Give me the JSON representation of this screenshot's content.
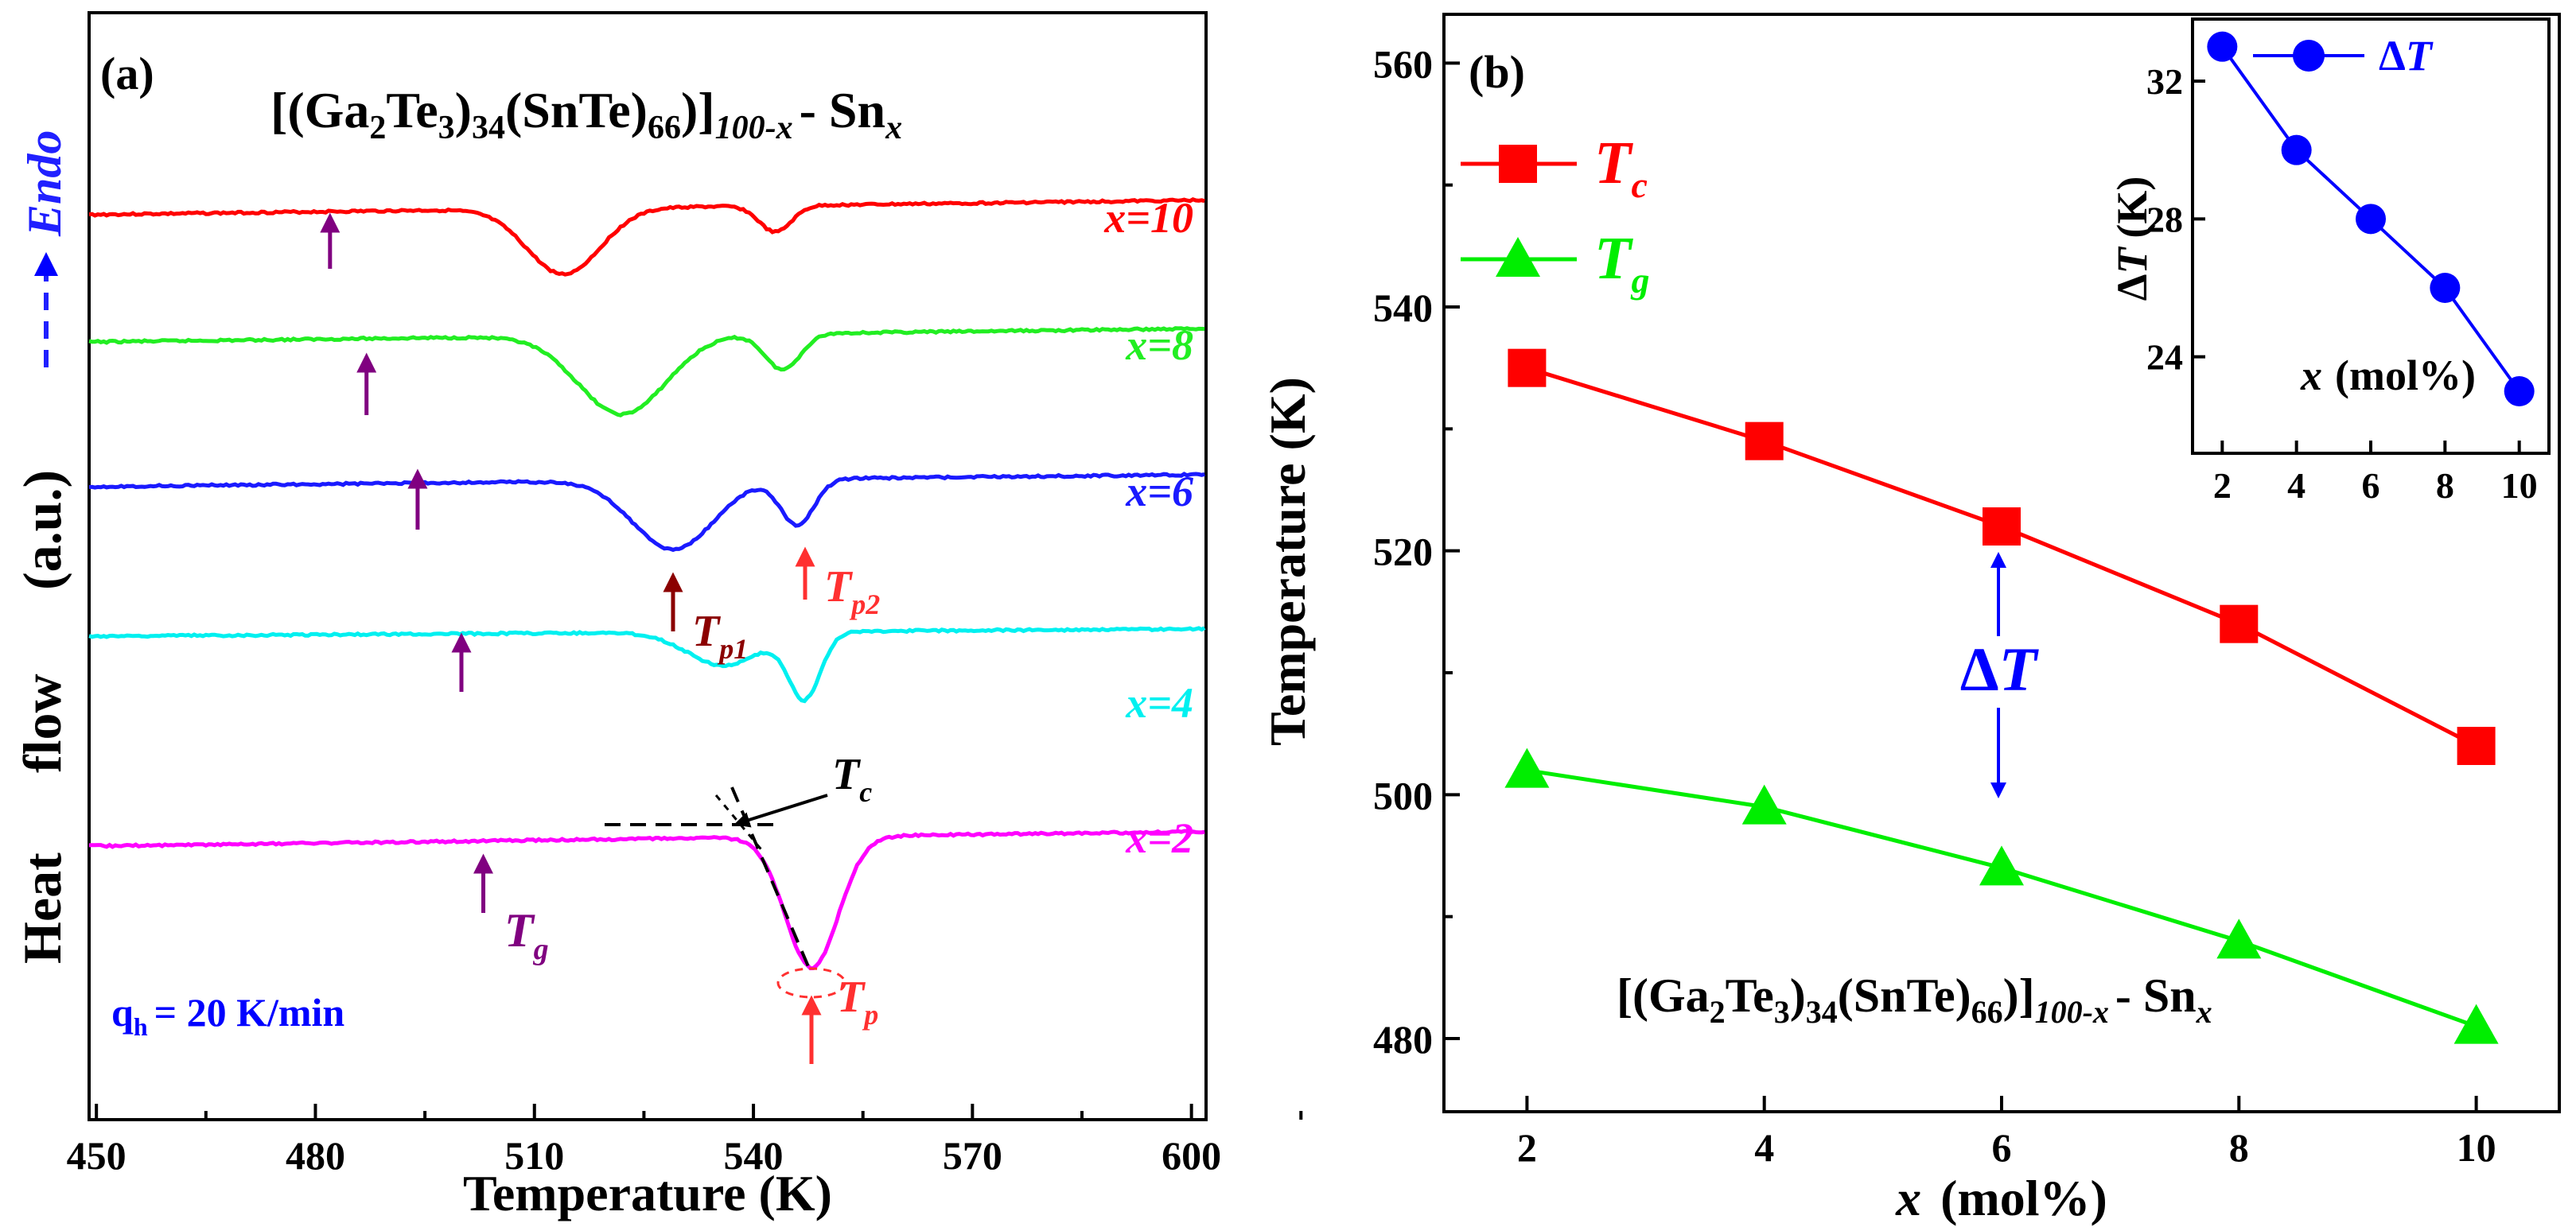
{
  "chart_data": [
    {
      "panel": "(a)",
      "type": "line",
      "title": "[(Ga2Te3)34(SnTe)66]100-x - Snx",
      "title_parts": {
        "open": "[(Ga",
        "s1": "2",
        "te": "Te",
        "s2": "3",
        "close1": ")",
        "s3": "34",
        "mid": "(SnTe)",
        "s4": "66",
        "close2": ")]",
        "s5": "100-x",
        "dash": "- Sn",
        "s6": "x"
      },
      "xlabel": "Temperature (K)",
      "ylabel_parts": [
        "Heat",
        "flow",
        "(a.u.)"
      ],
      "endo_label": "Endo",
      "xlim": [
        449,
        602
      ],
      "xticks": [
        "450",
        "480",
        "510",
        "540",
        "570",
        "600"
      ],
      "xtick_values": [
        450,
        480,
        510,
        540,
        570,
        600
      ],
      "heating_rate": {
        "q": "q",
        "sub": "h",
        "rest": "= 20 K/min"
      },
      "series": [
        {
          "name": "x=10",
          "label": "x=10",
          "color": "#ff0000",
          "Tg": 482,
          "dips": [
            [
              514,
              0.55,
              5
            ],
            [
              543,
              0.22,
              2.2
            ]
          ]
        },
        {
          "name": "x=8",
          "label": "x=8",
          "color": "#22ee22",
          "Tg": 487,
          "dips": [
            [
              522,
              0.66,
              6
            ],
            [
              544,
              0.3,
              2.4
            ]
          ]
        },
        {
          "name": "x=6",
          "label": "x=6",
          "color": "#1a1aff",
          "Tg": 494,
          "dips": [
            [
              529,
              0.58,
              5.5
            ],
            [
              546,
              0.38,
              2.3
            ]
          ]
        },
        {
          "name": "x=4",
          "label": "x=4",
          "color": "#00f0f0",
          "Tg": 500,
          "dips": [
            [
              536,
              0.28,
              5
            ],
            [
              547,
              0.55,
              2.2
            ]
          ]
        },
        {
          "name": "x=2",
          "label": "x=2",
          "color": "#ff00ff",
          "Tg": 503,
          "dips": [
            [
              548,
              1.1,
              3.6
            ]
          ]
        }
      ],
      "annotations": {
        "Tp1": {
          "T": "T",
          "sub": "p1"
        },
        "Tp2": {
          "T": "T",
          "sub": "p2"
        },
        "Tc": {
          "T": "T",
          "sub": "c"
        },
        "Tg": {
          "T": "T",
          "sub": "g"
        },
        "Tp": {
          "T": "T",
          "sub": "p"
        }
      },
      "colors": {
        "arrow": "#800080",
        "peak_arrow": "#ff3030",
        "peak1_arrow": "#8b0000",
        "heating": "#0000ff"
      }
    },
    {
      "panel": "(b)",
      "type": "line",
      "xlabel": "x  (mol%)",
      "xlabel_parts": {
        "var": "x",
        "rest": "(mol%)"
      },
      "ylabel": "Temperature (K)",
      "xlim": [
        1.3,
        10.7
      ],
      "ylim": [
        474,
        564
      ],
      "xticks": [
        "2",
        "4",
        "6",
        "8",
        "10"
      ],
      "xtick_values": [
        2,
        4,
        6,
        8,
        10
      ],
      "yticks": [
        "480",
        "500",
        "520",
        "540",
        "560"
      ],
      "ytick_values": [
        480,
        500,
        520,
        540,
        560
      ],
      "x": [
        2,
        4,
        6,
        8,
        10
      ],
      "series": [
        {
          "name": "Tc",
          "T": "T",
          "sub": "c",
          "marker": "square",
          "color": "#ff0000",
          "values": [
            535,
            529,
            522,
            514,
            504
          ]
        },
        {
          "name": "Tg",
          "T": "T",
          "sub": "g",
          "marker": "triangle",
          "color": "#00ee00",
          "values": [
            502,
            499,
            494,
            488,
            481
          ]
        }
      ],
      "delta_label": "ΔT",
      "delta_parts": {
        "d": "Δ",
        "T": "T"
      },
      "delta_color": "#0000ff",
      "formula_parts": {
        "open": "[(Ga",
        "s1": "2",
        "te": "Te",
        "s2": "3",
        "close1": ")",
        "s3": "34",
        "mid": "(SnTe)",
        "s4": "66",
        "close2": ")]",
        "s5": "100-x",
        "dash": "- Sn",
        "s6": "x"
      }
    },
    {
      "panel": "inset",
      "type": "line",
      "xlabel": "x (mol%)",
      "xlabel_parts": {
        "var": "x",
        "rest": "(mol%)"
      },
      "ylabel": "ΔT (K)",
      "ylabel_parts": {
        "d": "Δ",
        "T": "T",
        "rest": "(K)"
      },
      "xlim": [
        1.2,
        10.8
      ],
      "ylim": [
        21.2,
        33.8
      ],
      "xticks": [
        "2",
        "4",
        "6",
        "8",
        "10"
      ],
      "xtick_values": [
        2,
        4,
        6,
        8,
        10
      ],
      "yticks": [
        "24",
        "28",
        "32"
      ],
      "ytick_values": [
        24,
        28,
        32
      ],
      "x": [
        2,
        4,
        6,
        8,
        10
      ],
      "series": [
        {
          "name": "ΔT",
          "color": "#0000ff",
          "marker": "circle",
          "values": [
            33,
            30,
            28,
            26,
            23
          ]
        }
      ],
      "legend_parts": {
        "d": "Δ",
        "T": "T"
      }
    }
  ]
}
